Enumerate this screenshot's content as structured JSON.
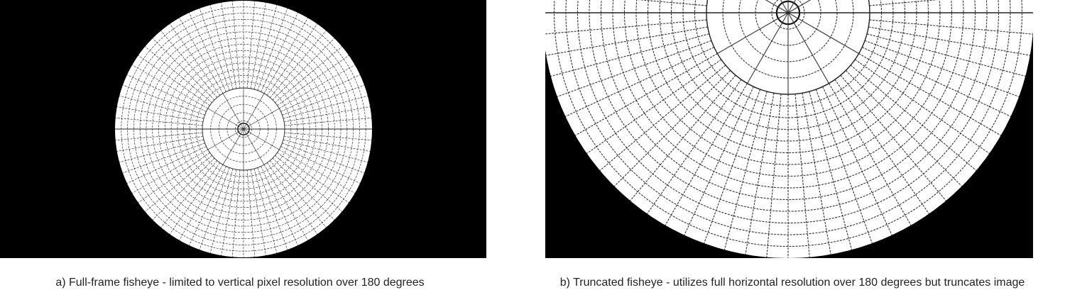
{
  "panels": [
    {
      "caption": "a) Full-frame fisheye - limited to vertical pixel resolution over 180 degrees"
    },
    {
      "caption": "b) Truncated fisheye - utilizes full horizontal resolution over 180 degrees but truncates image"
    }
  ]
}
